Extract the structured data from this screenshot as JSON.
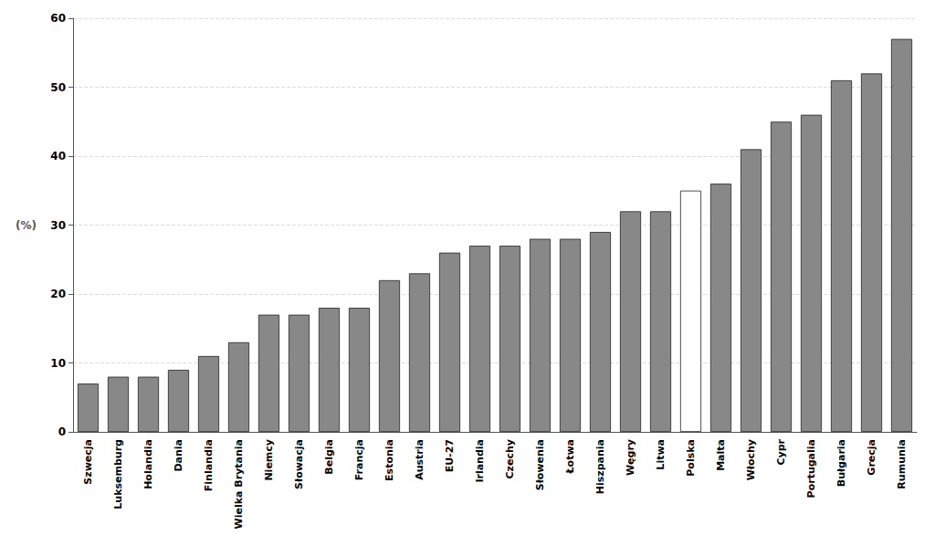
{
  "chart_data": {
    "type": "bar",
    "categories": [
      "Szwecja",
      "Luksemburg",
      "Holandia",
      "Dania",
      "Finlandia",
      "Wielka Brytania",
      "Niemcy",
      "Słowacja",
      "Belgia",
      "Francja",
      "Estonia",
      "Austria",
      "EU-27",
      "Irlandia",
      "Czechy",
      "Słowenia",
      "Łotwa",
      "Hiszpania",
      "Węgry",
      "Litwa",
      "Polska",
      "Malta",
      "Włochy",
      "Cypr",
      "Portugalia",
      "Bułgaria",
      "Grecja",
      "Rumunia"
    ],
    "values": [
      7,
      8,
      8,
      9,
      11,
      13,
      17,
      17,
      18,
      18,
      22,
      23,
      26,
      27,
      27,
      28,
      28,
      29,
      32,
      32,
      35,
      36,
      41,
      45,
      46,
      51,
      52,
      57
    ],
    "colors": [
      "#888888",
      "#888888",
      "#888888",
      "#888888",
      "#888888",
      "#888888",
      "#888888",
      "#888888",
      "#888888",
      "#888888",
      "#888888",
      "#888888",
      "#888888",
      "#888888",
      "#888888",
      "#888888",
      "#888888",
      "#888888",
      "#888888",
      "#888888",
      "#ffffff",
      "#888888",
      "#888888",
      "#888888",
      "#888888",
      "#888888",
      "#888888",
      "#888888"
    ],
    "ylabel": "(%)",
    "ylim": [
      0,
      60
    ],
    "yticks": [
      0,
      10,
      20,
      30,
      40,
      50,
      60
    ],
    "grid": true
  }
}
